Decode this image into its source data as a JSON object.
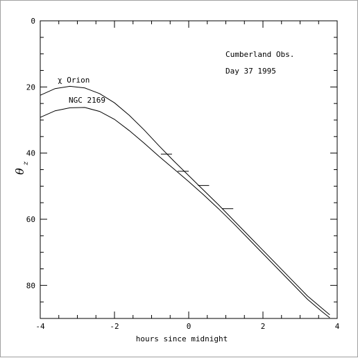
{
  "chart_data": {
    "type": "line",
    "title": "",
    "xlabel": "hours since midnight",
    "ylabel": {
      "symbol": "θ",
      "subscript": "z"
    },
    "xlim": [
      -4,
      4
    ],
    "ylim": [
      0,
      90
    ],
    "y_inverted": true,
    "x_ticks": [
      -4,
      -2,
      0,
      2,
      4
    ],
    "y_ticks": [
      0,
      20,
      40,
      60,
      80
    ],
    "grid": false,
    "annotations": [
      "Cumberland Obs.",
      "Day 37 1995"
    ],
    "series": [
      {
        "name": "χ Orion",
        "x": [
          -4.0,
          -3.6,
          -3.2,
          -2.8,
          -2.4,
          -2.0,
          -1.6,
          -1.2,
          -0.8,
          -0.4,
          0.0,
          0.4,
          0.8,
          1.2,
          1.6,
          2.0,
          2.4,
          2.8,
          3.2,
          3.6,
          3.8
        ],
        "y": [
          22.5,
          20.5,
          19.8,
          20.3,
          22.0,
          24.8,
          28.6,
          33.0,
          37.8,
          42.4,
          46.8,
          51.2,
          55.6,
          60.2,
          64.8,
          69.4,
          74.0,
          78.6,
          83.2,
          87.0,
          88.9
        ]
      },
      {
        "name": "NGC 2169",
        "x": [
          -4.0,
          -3.6,
          -3.2,
          -2.8,
          -2.4,
          -2.0,
          -1.6,
          -1.2,
          -0.8,
          -0.4,
          0.0,
          0.4,
          0.8,
          1.2,
          1.6,
          2.0,
          2.4,
          2.8,
          3.2,
          3.6,
          3.8
        ],
        "y": [
          29.2,
          27.2,
          26.3,
          26.2,
          27.4,
          29.8,
          33.2,
          37.0,
          41.0,
          44.8,
          48.6,
          52.6,
          56.8,
          61.2,
          65.8,
          70.4,
          75.0,
          79.6,
          84.2,
          88.0,
          89.8
        ]
      }
    ],
    "measurements": [
      {
        "x": -0.6,
        "y": 40.3,
        "halfwidth": 0.15
      },
      {
        "x": -0.15,
        "y": 45.5,
        "halfwidth": 0.15
      },
      {
        "x": 0.4,
        "y": 49.8,
        "halfwidth": 0.15
      },
      {
        "x": 1.05,
        "y": 56.8,
        "halfwidth": 0.15
      }
    ]
  }
}
